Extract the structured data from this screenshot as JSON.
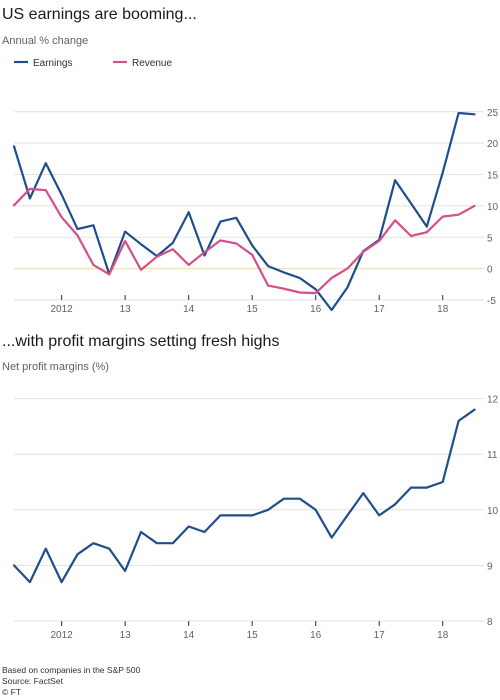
{
  "chart_data": [
    {
      "type": "line",
      "title": "US earnings are booming...",
      "subtitle": "Annual % change",
      "x": [
        2011.25,
        2011.5,
        2011.75,
        2012.0,
        2012.25,
        2012.5,
        2012.75,
        2013.0,
        2013.25,
        2013.5,
        2013.75,
        2014.0,
        2014.25,
        2014.5,
        2014.75,
        2015.0,
        2015.25,
        2015.5,
        2015.75,
        2016.0,
        2016.25,
        2016.5,
        2016.75,
        2017.0,
        2017.25,
        2017.5,
        2017.75,
        2018.0,
        2018.25,
        2018.5
      ],
      "series": [
        {
          "name": "Earnings",
          "color": "#1f4e8c",
          "values": [
            19.5,
            11.2,
            16.8,
            11.8,
            6.3,
            6.9,
            -0.9,
            5.9,
            3.9,
            2.0,
            4.1,
            9.0,
            2.1,
            7.5,
            8.1,
            3.7,
            0.4,
            -0.6,
            -1.5,
            -3.3,
            -6.6,
            -3.0,
            2.8,
            4.6,
            14.1,
            10.4,
            6.7,
            15.3,
            24.8,
            24.6
          ]
        },
        {
          "name": "Revenue",
          "color": "#d44f8a",
          "values": [
            10.1,
            12.7,
            12.5,
            8.2,
            5.3,
            0.6,
            -0.9,
            4.4,
            -0.2,
            1.9,
            3.1,
            0.6,
            2.6,
            4.5,
            4.0,
            2.2,
            -2.7,
            -3.2,
            -3.8,
            -3.9,
            -1.5,
            0.0,
            2.7,
            4.4,
            7.7,
            5.2,
            5.8,
            8.3,
            8.6,
            10.0
          ]
        }
      ],
      "xticks": [
        "2012",
        "13",
        "14",
        "15",
        "16",
        "17",
        "18"
      ],
      "xtick_values": [
        2012,
        2013,
        2014,
        2015,
        2016,
        2017,
        2018
      ],
      "yticks": [
        -5,
        0,
        5,
        10,
        15,
        20,
        25
      ],
      "ylim": [
        -5,
        26
      ],
      "xlim": [
        2011.25,
        2018.65
      ],
      "grid": true,
      "legend": "top-left"
    },
    {
      "type": "line",
      "title": "...with profit margins setting fresh highs",
      "subtitle": "Net profit margins (%)",
      "x": [
        2011.25,
        2011.5,
        2011.75,
        2012.0,
        2012.25,
        2012.5,
        2012.75,
        2013.0,
        2013.25,
        2013.5,
        2013.75,
        2014.0,
        2014.25,
        2014.5,
        2014.75,
        2015.0,
        2015.25,
        2015.5,
        2015.75,
        2016.0,
        2016.25,
        2016.5,
        2016.75,
        2017.0,
        2017.25,
        2017.5,
        2017.75,
        2018.0,
        2018.25,
        2018.5
      ],
      "series": [
        {
          "name": "",
          "color": "#1f4e8c",
          "values": [
            9.0,
            8.7,
            9.3,
            8.7,
            9.2,
            9.4,
            9.3,
            8.9,
            9.6,
            9.4,
            9.4,
            9.7,
            9.6,
            9.9,
            9.9,
            9.9,
            10.0,
            10.2,
            10.2,
            10.0,
            9.5,
            9.9,
            10.3,
            9.9,
            10.1,
            10.4,
            10.4,
            10.5,
            11.6,
            11.8
          ]
        }
      ],
      "xticks": [
        "2012",
        "13",
        "14",
        "15",
        "16",
        "17",
        "18"
      ],
      "xtick_values": [
        2012,
        2013,
        2014,
        2015,
        2016,
        2017,
        2018
      ],
      "yticks": [
        8,
        9,
        10,
        11,
        12
      ],
      "ylim": [
        8,
        12.2
      ],
      "xlim": [
        2011.25,
        2018.65
      ],
      "grid": true,
      "legend": "none"
    }
  ],
  "footer": {
    "note": "Based on companies in the S&P 500",
    "source": "Source: FactSet",
    "credit": "© FT"
  },
  "colors": {
    "grid": "#e6e1dc",
    "zero_line": "#f0d9b8",
    "axis": "#33302e"
  }
}
